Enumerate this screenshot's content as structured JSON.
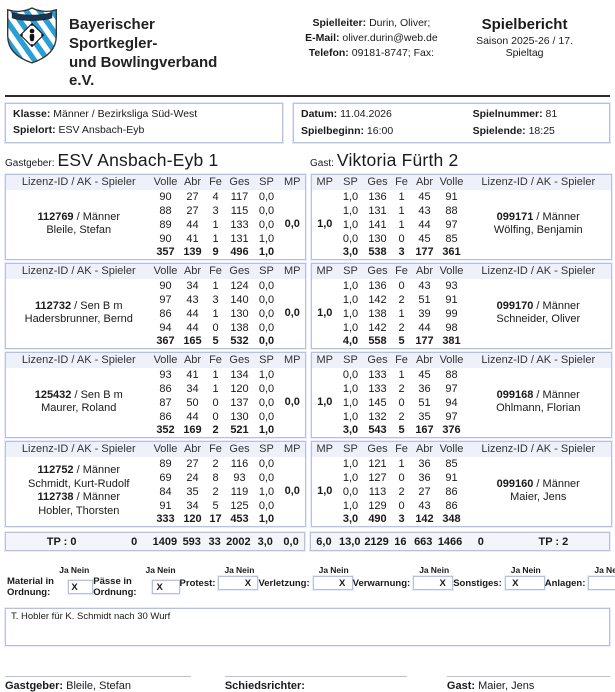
{
  "header": {
    "org_line1": "Bayerischer Sportkegler-",
    "org_line2": "und Bowlingverband e.V.",
    "spielleiter_label": "Spielleiter:",
    "spielleiter": "Durin, Oliver;",
    "email_label": "E-Mail:",
    "email": "oliver.durin@web.de",
    "telefon_label": "Telefon:",
    "telefon": "09181-8747; Fax:",
    "report_title": "Spielbericht",
    "season": "Saison 2025-26 / 17. Spieltag"
  },
  "info": {
    "klasse_label": "Klasse:",
    "klasse": "Männer / Bezirksliga Süd-West",
    "spielort_label": "Spielort:",
    "spielort": "ESV Ansbach-Eyb",
    "datum_label": "Datum:",
    "datum": "11.04.2026",
    "spielnummer_label": "Spielnummer:",
    "spielnummer": "81",
    "spielbeginn_label": "Spielbeginn:",
    "spielbeginn": "16:00",
    "spielende_label": "Spielende:",
    "spielende": "18:25"
  },
  "teams": {
    "home_label": "Gastgeber:",
    "home_name": "ESV Ansbach-Eyb 1",
    "guest_label": "Gast:",
    "guest_name": "Viktoria Fürth 2"
  },
  "table": {
    "home_headers": [
      "Lizenz-ID / AK - Spieler",
      "Volle",
      "Abr",
      "Fe",
      "Ges",
      "SP",
      "MP"
    ],
    "guest_headers": [
      "MP",
      "SP",
      "Ges",
      "Fe",
      "Abr",
      "Volle",
      "Lizenz-ID / AK - Spieler"
    ]
  },
  "blocks": [
    {
      "home": {
        "players": [
          {
            "lizenz": "112769",
            "ak": "Männer",
            "name": "Bleile, Stefan"
          }
        ],
        "mp": "0,0",
        "rows": [
          [
            "90",
            "27",
            "4",
            "117",
            "0,0"
          ],
          [
            "88",
            "27",
            "3",
            "115",
            "0,0"
          ],
          [
            "89",
            "44",
            "1",
            "133",
            "0,0"
          ],
          [
            "90",
            "41",
            "1",
            "131",
            "1,0"
          ]
        ],
        "total": [
          "357",
          "139",
          "9",
          "496",
          "1,0"
        ]
      },
      "guest": {
        "players": [
          {
            "lizenz": "099171",
            "ak": "Männer",
            "name": "Wölfing, Benjamin"
          }
        ],
        "mp": "1,0",
        "rows": [
          [
            "1,0",
            "136",
            "1",
            "45",
            "91"
          ],
          [
            "1,0",
            "131",
            "1",
            "43",
            "88"
          ],
          [
            "1,0",
            "141",
            "1",
            "44",
            "97"
          ],
          [
            "0,0",
            "130",
            "0",
            "45",
            "85"
          ]
        ],
        "total": [
          "3,0",
          "538",
          "3",
          "177",
          "361"
        ]
      }
    },
    {
      "home": {
        "players": [
          {
            "lizenz": "112732",
            "ak": "Sen B m",
            "name": "Hadersbrunner, Bernd"
          }
        ],
        "mp": "0,0",
        "rows": [
          [
            "90",
            "34",
            "1",
            "124",
            "0,0"
          ],
          [
            "97",
            "43",
            "3",
            "140",
            "0,0"
          ],
          [
            "86",
            "44",
            "1",
            "130",
            "0,0"
          ],
          [
            "94",
            "44",
            "0",
            "138",
            "0,0"
          ]
        ],
        "total": [
          "367",
          "165",
          "5",
          "532",
          "0,0"
        ]
      },
      "guest": {
        "players": [
          {
            "lizenz": "099170",
            "ak": "Männer",
            "name": "Schneider, Oliver"
          }
        ],
        "mp": "1,0",
        "rows": [
          [
            "1,0",
            "136",
            "0",
            "43",
            "93"
          ],
          [
            "1,0",
            "142",
            "2",
            "51",
            "91"
          ],
          [
            "1,0",
            "138",
            "1",
            "39",
            "99"
          ],
          [
            "1,0",
            "142",
            "2",
            "44",
            "98"
          ]
        ],
        "total": [
          "4,0",
          "558",
          "5",
          "177",
          "381"
        ]
      }
    },
    {
      "home": {
        "players": [
          {
            "lizenz": "125432",
            "ak": "Sen B m",
            "name": "Maurer, Roland"
          }
        ],
        "mp": "0,0",
        "rows": [
          [
            "93",
            "41",
            "1",
            "134",
            "1,0"
          ],
          [
            "86",
            "34",
            "1",
            "120",
            "0,0"
          ],
          [
            "87",
            "50",
            "0",
            "137",
            "0,0"
          ],
          [
            "86",
            "44",
            "0",
            "130",
            "0,0"
          ]
        ],
        "total": [
          "352",
          "169",
          "2",
          "521",
          "1,0"
        ]
      },
      "guest": {
        "players": [
          {
            "lizenz": "099168",
            "ak": "Männer",
            "name": "Ohlmann, Florian"
          }
        ],
        "mp": "1,0",
        "rows": [
          [
            "0,0",
            "133",
            "1",
            "45",
            "88"
          ],
          [
            "1,0",
            "133",
            "2",
            "36",
            "97"
          ],
          [
            "1,0",
            "145",
            "0",
            "51",
            "94"
          ],
          [
            "1,0",
            "132",
            "2",
            "35",
            "97"
          ]
        ],
        "total": [
          "3,0",
          "543",
          "5",
          "167",
          "376"
        ]
      }
    },
    {
      "home": {
        "players": [
          {
            "lizenz": "112752",
            "ak": "Männer",
            "name": "Schmidt, Kurt-Rudolf"
          },
          {
            "lizenz": "112738",
            "ak": "Männer",
            "name": "Hobler, Thorsten"
          }
        ],
        "mp": "0,0",
        "rows": [
          [
            "89",
            "27",
            "2",
            "116",
            "0,0"
          ],
          [
            "69",
            "24",
            "8",
            "93",
            "0,0"
          ],
          [
            "84",
            "35",
            "2",
            "119",
            "1,0"
          ],
          [
            "91",
            "34",
            "5",
            "125",
            "0,0"
          ]
        ],
        "total": [
          "333",
          "120",
          "17",
          "453",
          "1,0"
        ]
      },
      "guest": {
        "players": [
          {
            "lizenz": "099160",
            "ak": "Männer",
            "name": "Maier, Jens"
          }
        ],
        "mp": "1,0",
        "rows": [
          [
            "1,0",
            "121",
            "1",
            "36",
            "85"
          ],
          [
            "1,0",
            "127",
            "0",
            "36",
            "91"
          ],
          [
            "0,0",
            "113",
            "2",
            "27",
            "86"
          ],
          [
            "1,0",
            "129",
            "0",
            "43",
            "86"
          ]
        ],
        "total": [
          "3,0",
          "490",
          "3",
          "142",
          "348"
        ]
      }
    }
  ],
  "tp": {
    "home_label": "TP : 0",
    "home_values": [
      "0",
      "1409",
      "593",
      "33",
      "2002",
      "3,0",
      "0,0"
    ],
    "guest_values": [
      "6,0",
      "13,0",
      "2129",
      "16",
      "663",
      "1466",
      "0"
    ],
    "guest_label": "TP : 2"
  },
  "checks_labels": {
    "ja": "Ja",
    "nein": "Nein",
    "mark": "X"
  },
  "checks": [
    {
      "key": "material",
      "label": "Material in Ordnung:",
      "answer": "ja"
    },
    {
      "key": "paesse",
      "label": "Pässe in Ordnung:",
      "answer": "ja"
    },
    {
      "key": "protest",
      "label": "Protest:",
      "answer": "nein"
    },
    {
      "key": "verletzung",
      "label": "Verletzung:",
      "answer": "nein"
    },
    {
      "key": "verwarnung",
      "label": "Verwarnung:",
      "answer": "nein"
    },
    {
      "key": "sonstiges",
      "label": "Sonstiges:",
      "answer": "ja"
    },
    {
      "key": "anlagen",
      "label": "Anlagen:",
      "answer": "nein"
    }
  ],
  "comment": "T. Hobler für K. Schmidt nach 30 Wurf",
  "signatures": [
    {
      "label": "Gastgeber:",
      "name": "Bleile, Stefan"
    },
    {
      "label": "Schiedsrichter:",
      "name": ""
    },
    {
      "label": "Gast:",
      "name": "Maier, Jens"
    }
  ],
  "colors": {
    "border": "#b6c0e2",
    "header_bg": "#eef1fa",
    "logo_blue": "#2a9fd4",
    "rule": "#2b2b2b"
  }
}
